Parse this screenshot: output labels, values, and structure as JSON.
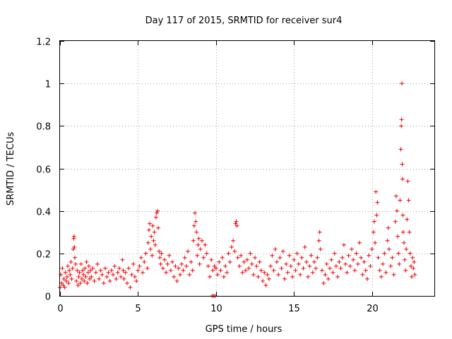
{
  "chart_data": {
    "type": "scatter",
    "title": "Day 117 of 2015, SRMTID for receiver sur4",
    "xlabel": "GPS time / hours",
    "ylabel": "SRMTID / TECUs",
    "xlim": [
      0,
      24
    ],
    "ylim": [
      0,
      1.2
    ],
    "xticks": [
      0,
      5,
      10,
      15,
      20
    ],
    "xtick_labels": [
      "0",
      "5",
      "10",
      "15",
      "20"
    ],
    "yticks": [
      0,
      0.2,
      0.4,
      0.6,
      0.8,
      1,
      1.2
    ],
    "ytick_labels": [
      "0",
      "0.2",
      "0.4",
      "0.6",
      "0.8",
      "1",
      "1.2"
    ],
    "grid": true,
    "marker": "+",
    "color": "#ee0000",
    "series": [
      {
        "name": "sur4",
        "points": [
          [
            0.0,
            0.04
          ],
          [
            0.05,
            0.1
          ],
          [
            0.1,
            0.06
          ],
          [
            0.15,
            0.13
          ],
          [
            0.2,
            0.05
          ],
          [
            0.25,
            0.08
          ],
          [
            0.3,
            0.04
          ],
          [
            0.35,
            0.11
          ],
          [
            0.4,
            0.07
          ],
          [
            0.45,
            0.09
          ],
          [
            0.5,
            0.14
          ],
          [
            0.55,
            0.06
          ],
          [
            0.6,
            0.12
          ],
          [
            0.65,
            0.1
          ],
          [
            0.7,
            0.16
          ],
          [
            0.75,
            0.08
          ],
          [
            0.8,
            0.13
          ],
          [
            0.85,
            0.22
          ],
          [
            0.88,
            0.27
          ],
          [
            0.9,
            0.28
          ],
          [
            0.92,
            0.23
          ],
          [
            0.95,
            0.18
          ],
          [
            1.0,
            0.15
          ],
          [
            1.05,
            0.07
          ],
          [
            1.1,
            0.12
          ],
          [
            1.15,
            0.05
          ],
          [
            1.2,
            0.09
          ],
          [
            1.25,
            0.11
          ],
          [
            1.3,
            0.06
          ],
          [
            1.35,
            0.15
          ],
          [
            1.4,
            0.08
          ],
          [
            1.45,
            0.12
          ],
          [
            1.5,
            0.1
          ],
          [
            1.55,
            0.07
          ],
          [
            1.6,
            0.13
          ],
          [
            1.65,
            0.09
          ],
          [
            1.7,
            0.16
          ],
          [
            1.75,
            0.06
          ],
          [
            1.8,
            0.11
          ],
          [
            1.85,
            0.14
          ],
          [
            1.9,
            0.08
          ],
          [
            1.95,
            0.12
          ],
          [
            2.0,
            0.09
          ],
          [
            2.1,
            0.13
          ],
          [
            2.2,
            0.07
          ],
          [
            2.3,
            0.11
          ],
          [
            2.4,
            0.15
          ],
          [
            2.5,
            0.08
          ],
          [
            2.6,
            0.12
          ],
          [
            2.7,
            0.1
          ],
          [
            2.8,
            0.06
          ],
          [
            2.9,
            0.13
          ],
          [
            3.0,
            0.09
          ],
          [
            3.1,
            0.11
          ],
          [
            3.2,
            0.07
          ],
          [
            3.3,
            0.12
          ],
          [
            3.4,
            0.1
          ],
          [
            3.5,
            0.14
          ],
          [
            3.6,
            0.08
          ],
          [
            3.7,
            0.11
          ],
          [
            3.8,
            0.13
          ],
          [
            3.9,
            0.09
          ],
          [
            4.0,
            0.17
          ],
          [
            4.05,
            0.12
          ],
          [
            4.1,
            0.08
          ],
          [
            4.2,
            0.11
          ],
          [
            4.3,
            0.06
          ],
          [
            4.4,
            0.13
          ],
          [
            4.5,
            0.04
          ],
          [
            4.6,
            0.1
          ],
          [
            4.7,
            0.15
          ],
          [
            4.8,
            0.09
          ],
          [
            4.9,
            0.07
          ],
          [
            5.0,
            0.12
          ],
          [
            5.1,
            0.14
          ],
          [
            5.2,
            0.18
          ],
          [
            5.3,
            0.11
          ],
          [
            5.4,
            0.16
          ],
          [
            5.5,
            0.2
          ],
          [
            5.6,
            0.13
          ],
          [
            5.65,
            0.25
          ],
          [
            5.7,
            0.31
          ],
          [
            5.75,
            0.34
          ],
          [
            5.8,
            0.22
          ],
          [
            5.85,
            0.28
          ],
          [
            5.9,
            0.19
          ],
          [
            5.95,
            0.33
          ],
          [
            6.0,
            0.26
          ],
          [
            6.05,
            0.3
          ],
          [
            6.1,
            0.24
          ],
          [
            6.15,
            0.37
          ],
          [
            6.2,
            0.39
          ],
          [
            6.25,
            0.4
          ],
          [
            6.3,
            0.32
          ],
          [
            6.35,
            0.21
          ],
          [
            6.4,
            0.18
          ],
          [
            6.45,
            0.15
          ],
          [
            6.5,
            0.2
          ],
          [
            6.6,
            0.13
          ],
          [
            6.7,
            0.17
          ],
          [
            6.8,
            0.11
          ],
          [
            6.9,
            0.15
          ],
          [
            7.0,
            0.19
          ],
          [
            7.1,
            0.12
          ],
          [
            7.2,
            0.16
          ],
          [
            7.3,
            0.09
          ],
          [
            7.4,
            0.14
          ],
          [
            7.5,
            0.07
          ],
          [
            7.6,
            0.13
          ],
          [
            7.7,
            0.1
          ],
          [
            7.8,
            0.15
          ],
          [
            7.9,
            0.12
          ],
          [
            8.0,
            0.18
          ],
          [
            8.1,
            0.14
          ],
          [
            8.2,
            0.21
          ],
          [
            8.3,
            0.1
          ],
          [
            8.4,
            0.16
          ],
          [
            8.5,
            0.12
          ],
          [
            8.55,
            0.26
          ],
          [
            8.6,
            0.33
          ],
          [
            8.65,
            0.39
          ],
          [
            8.7,
            0.35
          ],
          [
            8.75,
            0.3
          ],
          [
            8.8,
            0.19
          ],
          [
            8.85,
            0.24
          ],
          [
            8.9,
            0.27
          ],
          [
            8.95,
            0.15
          ],
          [
            9.0,
            0.22
          ],
          [
            9.1,
            0.26
          ],
          [
            9.2,
            0.18
          ],
          [
            9.3,
            0.24
          ],
          [
            9.4,
            0.2
          ],
          [
            9.5,
            0.14
          ],
          [
            9.6,
            0.09
          ],
          [
            9.7,
            0.17
          ],
          [
            9.75,
            0.0
          ],
          [
            9.8,
            0.12
          ],
          [
            9.85,
            0.0
          ],
          [
            9.9,
            0.14
          ],
          [
            9.95,
            0.0
          ],
          [
            10.0,
            0.13
          ],
          [
            10.1,
            0.1
          ],
          [
            10.2,
            0.16
          ],
          [
            10.3,
            0.12
          ],
          [
            10.4,
            0.18
          ],
          [
            10.5,
            0.09
          ],
          [
            10.6,
            0.14
          ],
          [
            10.7,
            0.11
          ],
          [
            10.8,
            0.2
          ],
          [
            10.9,
            0.16
          ],
          [
            11.0,
            0.23
          ],
          [
            11.1,
            0.26
          ],
          [
            11.2,
            0.21
          ],
          [
            11.25,
            0.34
          ],
          [
            11.3,
            0.35
          ],
          [
            11.35,
            0.33
          ],
          [
            11.4,
            0.18
          ],
          [
            11.5,
            0.14
          ],
          [
            11.6,
            0.19
          ],
          [
            11.7,
            0.11
          ],
          [
            11.8,
            0.16
          ],
          [
            11.9,
            0.12
          ],
          [
            12.0,
            0.17
          ],
          [
            12.1,
            0.13
          ],
          [
            12.2,
            0.2
          ],
          [
            12.3,
            0.15
          ],
          [
            12.4,
            0.1
          ],
          [
            12.5,
            0.18
          ],
          [
            12.6,
            0.14
          ],
          [
            12.7,
            0.09
          ],
          [
            12.8,
            0.16
          ],
          [
            12.9,
            0.12
          ],
          [
            13.0,
            0.07
          ],
          [
            13.1,
            0.11
          ],
          [
            13.2,
            0.05
          ],
          [
            13.3,
            0.1
          ],
          [
            13.4,
            0.08
          ],
          [
            13.5,
            0.14
          ],
          [
            13.6,
            0.19
          ],
          [
            13.7,
            0.12
          ],
          [
            13.8,
            0.22
          ],
          [
            13.9,
            0.16
          ],
          [
            14.0,
            0.1
          ],
          [
            14.1,
            0.18
          ],
          [
            14.2,
            0.13
          ],
          [
            14.3,
            0.21
          ],
          [
            14.4,
            0.08
          ],
          [
            14.5,
            0.15
          ],
          [
            14.6,
            0.11
          ],
          [
            14.7,
            0.19
          ],
          [
            14.8,
            0.14
          ],
          [
            14.9,
            0.09
          ],
          [
            15.0,
            0.17
          ],
          [
            15.1,
            0.12
          ],
          [
            15.2,
            0.2
          ],
          [
            15.3,
            0.15
          ],
          [
            15.4,
            0.1
          ],
          [
            15.5,
            0.18
          ],
          [
            15.6,
            0.13
          ],
          [
            15.7,
            0.23
          ],
          [
            15.8,
            0.16
          ],
          [
            15.9,
            0.09
          ],
          [
            16.0,
            0.14
          ],
          [
            16.1,
            0.19
          ],
          [
            16.2,
            0.11
          ],
          [
            16.3,
            0.16
          ],
          [
            16.4,
            0.13
          ],
          [
            16.5,
            0.18
          ],
          [
            16.6,
            0.26
          ],
          [
            16.65,
            0.3
          ],
          [
            16.7,
            0.22
          ],
          [
            16.8,
            0.12
          ],
          [
            16.9,
            0.06
          ],
          [
            17.0,
            0.1
          ],
          [
            17.1,
            0.15
          ],
          [
            17.2,
            0.08
          ],
          [
            17.3,
            0.13
          ],
          [
            17.4,
            0.17
          ],
          [
            17.5,
            0.11
          ],
          [
            17.6,
            0.2
          ],
          [
            17.7,
            0.14
          ],
          [
            17.8,
            0.09
          ],
          [
            17.9,
            0.16
          ],
          [
            18.0,
            0.13
          ],
          [
            18.1,
            0.18
          ],
          [
            18.2,
            0.24
          ],
          [
            18.3,
            0.15
          ],
          [
            18.4,
            0.11
          ],
          [
            18.5,
            0.19
          ],
          [
            18.6,
            0.14
          ],
          [
            18.7,
            0.22
          ],
          [
            18.8,
            0.17
          ],
          [
            18.9,
            0.12
          ],
          [
            19.0,
            0.2
          ],
          [
            19.1,
            0.15
          ],
          [
            19.2,
            0.25
          ],
          [
            19.3,
            0.18
          ],
          [
            19.4,
            0.1
          ],
          [
            19.5,
            0.16
          ],
          [
            19.6,
            0.12
          ],
          [
            19.7,
            0.08
          ],
          [
            19.8,
            0.19
          ],
          [
            19.9,
            0.14
          ],
          [
            20.0,
            0.22
          ],
          [
            20.1,
            0.3
          ],
          [
            20.15,
            0.35
          ],
          [
            20.2,
            0.25
          ],
          [
            20.25,
            0.49
          ],
          [
            20.3,
            0.38
          ],
          [
            20.35,
            0.44
          ],
          [
            20.4,
            0.18
          ],
          [
            20.5,
            0.12
          ],
          [
            20.6,
            0.09
          ],
          [
            20.7,
            0.15
          ],
          [
            20.8,
            0.2
          ],
          [
            20.9,
            0.11
          ],
          [
            21.0,
            0.26
          ],
          [
            21.05,
            0.32
          ],
          [
            21.1,
            0.22
          ],
          [
            21.2,
            0.14
          ],
          [
            21.3,
            0.18
          ],
          [
            21.4,
            0.1
          ],
          [
            21.5,
            0.35
          ],
          [
            21.55,
            0.47
          ],
          [
            21.6,
            0.4
          ],
          [
            21.65,
            0.28
          ],
          [
            21.7,
            0.2
          ],
          [
            21.75,
            0.15
          ],
          [
            21.8,
            0.45
          ],
          [
            21.85,
            0.69
          ],
          [
            21.88,
            0.8
          ],
          [
            21.9,
            0.83
          ],
          [
            21.92,
            1.0
          ],
          [
            21.94,
            0.62
          ],
          [
            21.96,
            0.55
          ],
          [
            21.98,
            0.38
          ],
          [
            22.0,
            0.3
          ],
          [
            22.05,
            0.25
          ],
          [
            22.1,
            0.17
          ],
          [
            22.15,
            0.12
          ],
          [
            22.2,
            0.22
          ],
          [
            22.25,
            0.36
          ],
          [
            22.3,
            0.54
          ],
          [
            22.35,
            0.45
          ],
          [
            22.4,
            0.3
          ],
          [
            22.45,
            0.2
          ],
          [
            22.5,
            0.14
          ],
          [
            22.55,
            0.09
          ],
          [
            22.6,
            0.18
          ],
          [
            22.65,
            0.13
          ],
          [
            22.7,
            0.16
          ],
          [
            22.75,
            0.1
          ]
        ]
      }
    ]
  }
}
